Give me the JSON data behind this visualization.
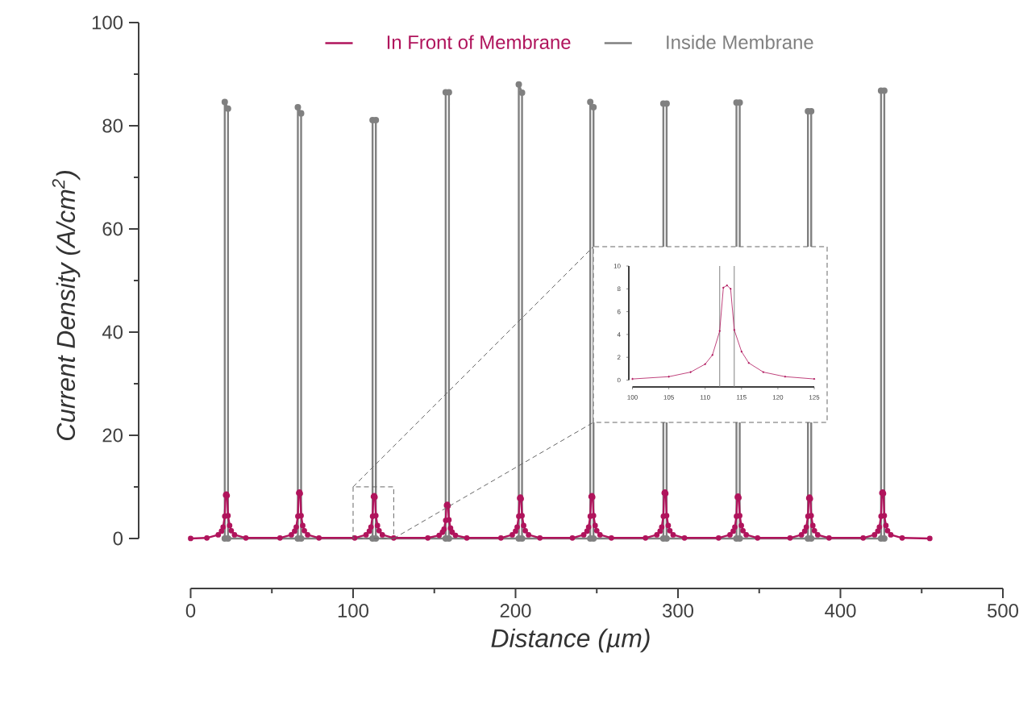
{
  "chart_data": [
    {
      "type": "line",
      "xlabel": "Distance (µm)",
      "ylabel": "Current Density (A/cm$^{2}$)",
      "xlim": [
        0,
        500
      ],
      "xticks": [
        0,
        100,
        200,
        300,
        400,
        500
      ],
      "ylim": [
        0,
        100
      ],
      "yticks": [
        0,
        20,
        40,
        60,
        80,
        100
      ],
      "legend": "top",
      "marker": "circle",
      "series": [
        {
          "name": "In Front of Membrane",
          "color": "#b0145c",
          "x": [
            0,
            10,
            17,
            19,
            20,
            21,
            21.5,
            22,
            22.5,
            23,
            24,
            25,
            27,
            34,
            55,
            62,
            64,
            65,
            66,
            66.5,
            67,
            67.5,
            68,
            69,
            70,
            72,
            79,
            101,
            108,
            110,
            111,
            112,
            112.5,
            113,
            113.5,
            114,
            115,
            116,
            118,
            125,
            146,
            153,
            155,
            156,
            157,
            157.5,
            158,
            158.5,
            159,
            160,
            161,
            163,
            170,
            191,
            198,
            200,
            201,
            202,
            202.5,
            203,
            203.5,
            204,
            205,
            206,
            208,
            215,
            235,
            242,
            244,
            245,
            246,
            246.5,
            247,
            247.5,
            248,
            249,
            250,
            252,
            259,
            280,
            287,
            289,
            290,
            291,
            291.5,
            292,
            292.5,
            293,
            294,
            295,
            297,
            304,
            325,
            332,
            334,
            335,
            336,
            336.5,
            337,
            337.5,
            338,
            339,
            340,
            342,
            349,
            369,
            376,
            378,
            379,
            380,
            380.5,
            381,
            381.5,
            382,
            383,
            384,
            386,
            393,
            414,
            421,
            423,
            424,
            425,
            425.5,
            426,
            426.5,
            427,
            428,
            429,
            431,
            438,
            455
          ],
          "values": [
            0,
            0.1,
            0.7,
            1.4,
            2.2,
            4.3,
            8.4,
            8.6,
            8.3,
            4.4,
            2.5,
            1.5,
            0.7,
            0.1,
            0.1,
            0.7,
            1.4,
            2.2,
            4.3,
            8.8,
            9.0,
            8.7,
            4.4,
            2.5,
            1.5,
            0.7,
            0.1,
            0.1,
            0.7,
            1.4,
            2.2,
            4.3,
            8.1,
            8.3,
            8.0,
            4.4,
            2.5,
            1.5,
            0.7,
            0.1,
            0.1,
            0.6,
            1.2,
            1.8,
            3.5,
            6.4,
            6.6,
            6.3,
            3.6,
            2.0,
            1.2,
            0.6,
            0.1,
            0.1,
            0.7,
            1.4,
            2.2,
            4.3,
            7.8,
            8.0,
            7.7,
            4.4,
            2.5,
            1.5,
            0.7,
            0.1,
            0.1,
            0.7,
            1.4,
            2.2,
            4.3,
            8.1,
            8.3,
            8.0,
            4.4,
            2.5,
            1.5,
            0.7,
            0.1,
            0.1,
            0.7,
            1.4,
            2.2,
            4.3,
            8.8,
            9.0,
            8.7,
            4.4,
            2.5,
            1.5,
            0.7,
            0.1,
            0.1,
            0.7,
            1.4,
            2.2,
            4.3,
            8.0,
            8.2,
            7.9,
            4.4,
            2.5,
            1.5,
            0.7,
            0.1,
            0.1,
            0.7,
            1.4,
            2.2,
            4.3,
            7.8,
            8.0,
            7.7,
            4.4,
            2.5,
            1.5,
            0.7,
            0.1,
            0.1,
            0.7,
            1.4,
            2.2,
            4.3,
            8.8,
            9.0,
            8.7,
            4.4,
            2.5,
            1.5,
            0.7,
            0.1,
            0
          ]
        },
        {
          "name": "Inside Membrane",
          "color": "#808080",
          "x": [
            21,
            21,
            23,
            23,
            66,
            66,
            68,
            68,
            112,
            112,
            114,
            114,
            157,
            157,
            159,
            159,
            202,
            202,
            204,
            204,
            246,
            246,
            248,
            248,
            291,
            291,
            293,
            293,
            336,
            336,
            338,
            338,
            380,
            380,
            382,
            382,
            425,
            425,
            427,
            427
          ],
          "values": [
            0,
            84.6,
            83.3,
            0,
            0,
            83.6,
            82.4,
            0,
            0,
            81.1,
            81.1,
            0,
            0,
            86.5,
            86.5,
            0,
            0,
            88.0,
            86.4,
            0,
            0,
            84.6,
            83.6,
            0,
            0,
            84.3,
            84.3,
            0,
            0,
            84.5,
            84.5,
            0,
            0,
            82.8,
            82.8,
            0,
            0,
            86.8,
            86.8,
            0
          ]
        }
      ]
    },
    {
      "type": "line",
      "xlim": [
        100,
        125
      ],
      "xticks": [
        100,
        105,
        110,
        115,
        120,
        125
      ],
      "ylim": [
        0,
        10
      ],
      "yticks": [
        0,
        2,
        4,
        6,
        8,
        10
      ],
      "marker": "circle",
      "series": [
        {
          "color": "#b0145c",
          "x": [
            100,
            105,
            108,
            110,
            111,
            112,
            112.5,
            113,
            113.5,
            114,
            115,
            116,
            118,
            121,
            125
          ],
          "values": [
            0.1,
            0.3,
            0.7,
            1.4,
            2.2,
            4.3,
            8.1,
            8.3,
            8.0,
            4.4,
            2.5,
            1.5,
            0.7,
            0.3,
            0.1
          ]
        }
      ],
      "ref_lines": [
        {
          "axis": "x",
          "value": 112,
          "color": "#808080"
        },
        {
          "axis": "x",
          "value": 114,
          "color": "#808080"
        }
      ]
    }
  ]
}
